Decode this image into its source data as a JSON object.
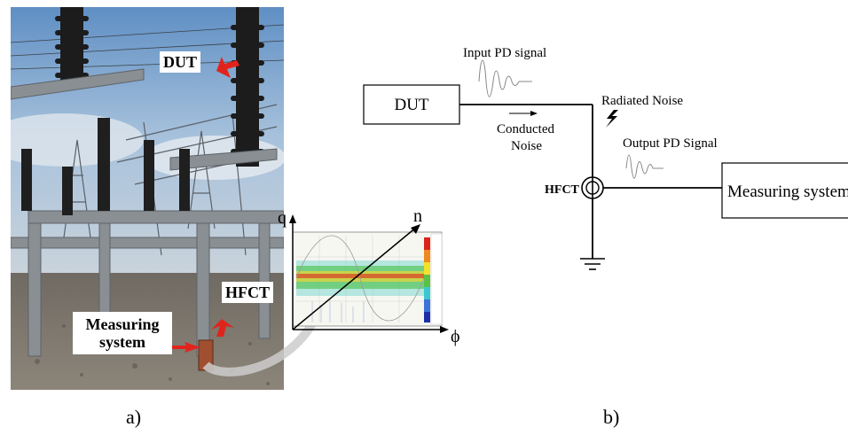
{
  "panel_a": {
    "label": "a)",
    "callouts": {
      "dut": "DUT",
      "hfct": "HFCT",
      "measuring_line1": "Measuring",
      "measuring_line2": "system"
    },
    "prpd_axes": {
      "q": "q",
      "n": "n",
      "phi": "ϕ"
    }
  },
  "panel_b": {
    "label": "b)",
    "dut_box": "DUT",
    "input_signal": "Input PD signal",
    "conducted_noise_line1": "Conducted",
    "conducted_noise_line2": "Noise",
    "radiated_noise": "Radiated Noise",
    "output_signal": "Output PD Signal",
    "hfct": "HFCT",
    "measuring_box": "Measuring system"
  },
  "colors": {
    "arrow_red": "#e0241c",
    "sky": "#7fa8d0",
    "line": "#000000"
  }
}
